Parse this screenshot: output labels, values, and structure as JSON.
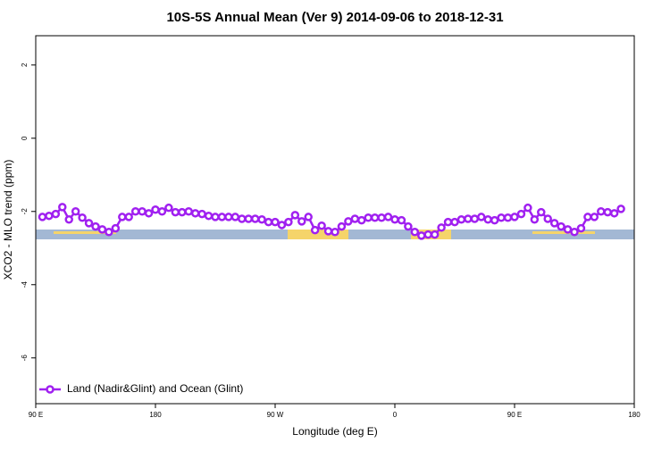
{
  "chart_data": {
    "type": "line",
    "title": "10S-5S Annual Mean (Ver 9)   2014-09-06 to 2018-12-31",
    "x_label": "Longitude (deg E)",
    "y_label": "XCO2 - MLO trend (ppm)",
    "x": [
      95,
      100,
      105,
      110,
      115,
      120,
      125,
      130,
      135,
      140,
      145,
      150,
      155,
      160,
      165,
      170,
      175,
      180,
      185,
      190,
      195,
      200,
      205,
      210,
      215,
      220,
      225,
      230,
      235,
      240,
      245,
      250,
      255,
      260,
      265,
      270,
      275,
      280,
      285,
      290,
      295,
      300,
      305,
      310,
      315,
      320,
      325,
      330,
      335,
      340,
      345,
      350,
      355,
      360,
      365,
      370,
      375,
      380,
      385,
      390,
      395,
      400,
      405,
      410,
      415,
      420,
      425,
      430,
      435,
      440,
      445,
      450,
      455,
      460,
      465,
      470,
      475,
      480,
      485,
      490,
      495,
      500,
      505,
      510,
      515,
      520,
      525,
      530
    ],
    "series": [
      {
        "name": "Land (Nadir&Glint) and Ocean (Glint)",
        "color": "#a020f0",
        "values": [
          -2.15,
          -2.12,
          -2.07,
          -1.88,
          -2.22,
          -2.0,
          -2.17,
          -2.32,
          -2.41,
          -2.49,
          -2.56,
          -2.46,
          -2.15,
          -2.15,
          -2.0,
          -2.0,
          -2.05,
          -1.95,
          -2.0,
          -1.9,
          -2.02,
          -2.02,
          -2.0,
          -2.05,
          -2.07,
          -2.12,
          -2.15,
          -2.15,
          -2.15,
          -2.15,
          -2.2,
          -2.2,
          -2.2,
          -2.22,
          -2.29,
          -2.29,
          -2.37,
          -2.29,
          -2.1,
          -2.27,
          -2.15,
          -2.51,
          -2.39,
          -2.54,
          -2.56,
          -2.41,
          -2.27,
          -2.2,
          -2.24,
          -2.17,
          -2.17,
          -2.17,
          -2.15,
          -2.22,
          -2.24,
          -2.41,
          -2.56,
          -2.66,
          -2.63,
          -2.63,
          -2.44,
          -2.29,
          -2.29,
          -2.22,
          -2.2,
          -2.2,
          -2.15,
          -2.22,
          -2.24,
          -2.17,
          -2.17,
          -2.15,
          -2.07,
          -1.9,
          -2.22,
          -2.02,
          -2.2,
          -2.32,
          -2.41,
          -2.49,
          -2.56,
          -2.46,
          -2.15,
          -2.15,
          -2.0,
          -2.02,
          -2.05,
          -1.93
        ]
      }
    ],
    "xlim": [
      90,
      540
    ],
    "xticks": [
      {
        "value": 90,
        "label": "90 E"
      },
      180,
      {
        "value": 270,
        "label": "90 W"
      },
      {
        "value": 360,
        "label": "0"
      },
      {
        "value": 450,
        "label": "90 E"
      },
      {
        "value": 540,
        "label": "180"
      }
    ],
    "ylim": [
      -7.25,
      2.8
    ],
    "yticks": [
      -6,
      -4,
      -2,
      0,
      2
    ],
    "legend": "bottom-left"
  }
}
